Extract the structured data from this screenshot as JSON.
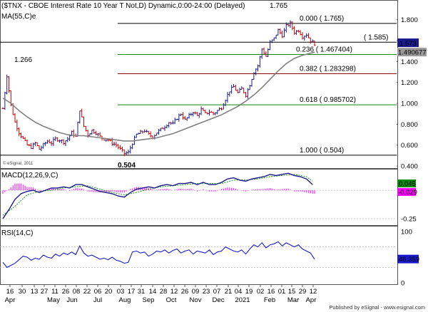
{
  "chart_data": {
    "type": "line",
    "title": "($TNX - CBOE Interest Rate 10 Year T Not,D) Dynamic,0:00-24:00 (Delayed)",
    "copyright": "© eSignal, 2011",
    "footer": "Published by eSignal - www.esignal.com",
    "price_panel": {
      "ylim": [
        0.38,
        1.88
      ],
      "yticks": [
        "1.800",
        "1.600",
        "1.400",
        "1.200",
        "1.000",
        "0.800",
        "0.600",
        "0.400"
      ],
      "ma_label": "MA(55,C)e",
      "last_price_label": "1.573",
      "ma_value_label": "1.490677",
      "annotations": [
        {
          "text": "1.266"
        },
        {
          "text": "0.504"
        },
        {
          "text": "1.765"
        }
      ],
      "fib_levels": [
        {
          "value": 1.765,
          "text": "0.000 ( 1.765)",
          "color": "#000000"
        },
        {
          "value": 1.585,
          "text": "( 1.585)",
          "color": "#000000"
        },
        {
          "value": 1.467404,
          "text": "0.236 ( 1.467404)",
          "color": "#0a8a0a"
        },
        {
          "value": 1.283298,
          "text": "0.382 ( 1.283298)",
          "color": "#8b0000"
        },
        {
          "value": 0.985702,
          "text": "0.618 ( 0.985702)",
          "color": "#0a8a0a"
        },
        {
          "value": 0.504,
          "text": "1.000 ( 0.504)",
          "color": "#000000"
        }
      ],
      "close_series": [
        [
          0,
          0.95
        ],
        [
          2,
          1.266
        ],
        [
          4,
          0.98
        ],
        [
          6,
          0.82
        ],
        [
          8,
          0.72
        ],
        [
          10,
          0.66
        ],
        [
          12,
          0.6
        ],
        [
          14,
          0.58
        ],
        [
          16,
          0.62
        ],
        [
          18,
          0.56
        ],
        [
          20,
          0.6
        ],
        [
          22,
          0.64
        ],
        [
          24,
          0.62
        ],
        [
          26,
          0.66
        ],
        [
          28,
          0.65
        ],
        [
          30,
          0.63
        ],
        [
          32,
          0.66
        ],
        [
          34,
          0.72
        ],
        [
          36,
          0.68
        ],
        [
          38,
          0.94
        ],
        [
          40,
          0.78
        ],
        [
          42,
          0.7
        ],
        [
          44,
          0.74
        ],
        [
          46,
          0.72
        ],
        [
          48,
          0.68
        ],
        [
          50,
          0.66
        ],
        [
          52,
          0.65
        ],
        [
          54,
          0.62
        ],
        [
          56,
          0.6
        ],
        [
          58,
          0.56
        ],
        [
          60,
          0.52
        ],
        [
          62,
          0.53
        ],
        [
          64,
          0.62
        ],
        [
          66,
          0.7
        ],
        [
          68,
          0.72
        ],
        [
          70,
          0.74
        ],
        [
          72,
          0.7
        ],
        [
          74,
          0.68
        ],
        [
          76,
          0.72
        ],
        [
          78,
          0.75
        ],
        [
          80,
          0.78
        ],
        [
          82,
          0.82
        ],
        [
          84,
          0.8
        ],
        [
          86,
          0.86
        ],
        [
          88,
          0.9
        ],
        [
          90,
          0.84
        ],
        [
          92,
          0.88
        ],
        [
          94,
          0.92
        ],
        [
          96,
          0.88
        ],
        [
          98,
          0.94
        ],
        [
          100,
          0.9
        ],
        [
          102,
          0.92
        ],
        [
          104,
          0.9
        ],
        [
          106,
          0.93
        ],
        [
          108,
          0.96
        ],
        [
          110,
          1.04
        ],
        [
          112,
          1.12
        ],
        [
          114,
          1.16
        ],
        [
          116,
          1.1
        ],
        [
          118,
          1.14
        ],
        [
          120,
          1.08
        ],
        [
          122,
          1.18
        ],
        [
          124,
          1.3
        ],
        [
          126,
          1.36
        ],
        [
          128,
          1.52
        ],
        [
          130,
          1.45
        ],
        [
          132,
          1.58
        ],
        [
          134,
          1.62
        ],
        [
          136,
          1.7
        ],
        [
          138,
          1.65
        ],
        [
          140,
          1.74
        ],
        [
          142,
          1.765
        ],
        [
          144,
          1.68
        ],
        [
          146,
          1.7
        ],
        [
          148,
          1.64
        ],
        [
          150,
          1.66
        ],
        [
          152,
          1.6
        ],
        [
          154,
          1.57
        ]
      ],
      "ma_series": [
        [
          0,
          1.05
        ],
        [
          4,
          1.0
        ],
        [
          8,
          0.93
        ],
        [
          12,
          0.87
        ],
        [
          16,
          0.82
        ],
        [
          20,
          0.78
        ],
        [
          24,
          0.75
        ],
        [
          28,
          0.72
        ],
        [
          32,
          0.7
        ],
        [
          36,
          0.69
        ],
        [
          40,
          0.69
        ],
        [
          44,
          0.68
        ],
        [
          48,
          0.67
        ],
        [
          52,
          0.66
        ],
        [
          56,
          0.65
        ],
        [
          60,
          0.64
        ],
        [
          64,
          0.64
        ],
        [
          68,
          0.65
        ],
        [
          72,
          0.66
        ],
        [
          76,
          0.67
        ],
        [
          80,
          0.69
        ],
        [
          84,
          0.71
        ],
        [
          88,
          0.74
        ],
        [
          92,
          0.77
        ],
        [
          96,
          0.8
        ],
        [
          100,
          0.83
        ],
        [
          104,
          0.86
        ],
        [
          108,
          0.89
        ],
        [
          112,
          0.93
        ],
        [
          116,
          0.97
        ],
        [
          120,
          1.02
        ],
        [
          124,
          1.08
        ],
        [
          128,
          1.15
        ],
        [
          132,
          1.23
        ],
        [
          136,
          1.31
        ],
        [
          140,
          1.38
        ],
        [
          144,
          1.43
        ],
        [
          148,
          1.46
        ],
        [
          152,
          1.48
        ],
        [
          154,
          1.49
        ]
      ]
    },
    "macd_panel": {
      "label": "MACD(12,26,9,C)",
      "ylim": [
        -0.3,
        0.17
      ],
      "yticks": [
        "0.00",
        "-0.25"
      ],
      "value_labels": [
        {
          "text": "0.045",
          "color": "#0a8a0a"
        },
        {
          "text": "-0.029",
          "color": "#ff00ff"
        }
      ],
      "macd_series": [
        [
          0,
          -0.25
        ],
        [
          3,
          -0.17
        ],
        [
          6,
          -0.08
        ],
        [
          9,
          -0.03
        ],
        [
          12,
          -0.01
        ],
        [
          15,
          0.0
        ],
        [
          18,
          -0.02
        ],
        [
          21,
          0.0
        ],
        [
          24,
          0.02
        ],
        [
          27,
          0.02
        ],
        [
          30,
          0.03
        ],
        [
          33,
          0.02
        ],
        [
          36,
          0.05
        ],
        [
          39,
          0.05
        ],
        [
          42,
          0.03
        ],
        [
          45,
          0.01
        ],
        [
          48,
          -0.01
        ],
        [
          51,
          -0.02
        ],
        [
          54,
          -0.03
        ],
        [
          57,
          -0.05
        ],
        [
          60,
          -0.06
        ],
        [
          63,
          -0.02
        ],
        [
          66,
          0.01
        ],
        [
          69,
          0.02
        ],
        [
          72,
          0.03
        ],
        [
          75,
          0.02
        ],
        [
          78,
          0.04
        ],
        [
          81,
          0.05
        ],
        [
          84,
          0.04
        ],
        [
          87,
          0.06
        ],
        [
          90,
          0.06
        ],
        [
          93,
          0.07
        ],
        [
          96,
          0.05
        ],
        [
          99,
          0.07
        ],
        [
          102,
          0.05
        ],
        [
          105,
          0.05
        ],
        [
          108,
          0.07
        ],
        [
          111,
          0.1
        ],
        [
          114,
          0.11
        ],
        [
          117,
          0.09
        ],
        [
          120,
          0.08
        ],
        [
          123,
          0.1
        ],
        [
          126,
          0.11
        ],
        [
          129,
          0.12
        ],
        [
          132,
          0.14
        ],
        [
          135,
          0.13
        ],
        [
          138,
          0.14
        ],
        [
          141,
          0.15
        ],
        [
          144,
          0.13
        ],
        [
          147,
          0.12
        ],
        [
          150,
          0.1
        ],
        [
          153,
          0.05
        ]
      ],
      "signal_series": [
        [
          0,
          -0.22
        ],
        [
          6,
          -0.14
        ],
        [
          12,
          -0.04
        ],
        [
          18,
          -0.01
        ],
        [
          24,
          0.0
        ],
        [
          30,
          0.02
        ],
        [
          36,
          0.03
        ],
        [
          42,
          0.04
        ],
        [
          48,
          0.01
        ],
        [
          54,
          -0.02
        ],
        [
          60,
          -0.04
        ],
        [
          66,
          -0.02
        ],
        [
          72,
          0.01
        ],
        [
          78,
          0.03
        ],
        [
          84,
          0.04
        ],
        [
          90,
          0.05
        ],
        [
          96,
          0.06
        ],
        [
          102,
          0.06
        ],
        [
          108,
          0.06
        ],
        [
          114,
          0.09
        ],
        [
          120,
          0.09
        ],
        [
          126,
          0.1
        ],
        [
          132,
          0.12
        ],
        [
          138,
          0.13
        ],
        [
          144,
          0.14
        ],
        [
          150,
          0.12
        ],
        [
          153,
          0.08
        ]
      ]
    },
    "rsi_panel": {
      "label": "RSI(14,C)",
      "ylim": [
        0,
        100
      ],
      "yticks": [
        "100",
        "0"
      ],
      "value_label": "46.359",
      "rsi_series": [
        [
          0,
          40
        ],
        [
          2,
          30
        ],
        [
          4,
          34
        ],
        [
          6,
          38
        ],
        [
          8,
          45
        ],
        [
          10,
          52
        ],
        [
          12,
          50
        ],
        [
          14,
          44
        ],
        [
          16,
          48
        ],
        [
          18,
          46
        ],
        [
          20,
          54
        ],
        [
          22,
          50
        ],
        [
          24,
          48
        ],
        [
          26,
          56
        ],
        [
          28,
          52
        ],
        [
          30,
          58
        ],
        [
          32,
          55
        ],
        [
          34,
          60
        ],
        [
          36,
          55
        ],
        [
          38,
          72
        ],
        [
          40,
          58
        ],
        [
          42,
          52
        ],
        [
          44,
          54
        ],
        [
          46,
          50
        ],
        [
          48,
          46
        ],
        [
          50,
          48
        ],
        [
          52,
          45
        ],
        [
          54,
          50
        ],
        [
          56,
          44
        ],
        [
          58,
          42
        ],
        [
          60,
          38
        ],
        [
          62,
          40
        ],
        [
          64,
          60
        ],
        [
          66,
          62
        ],
        [
          68,
          58
        ],
        [
          70,
          60
        ],
        [
          72,
          52
        ],
        [
          74,
          56
        ],
        [
          76,
          62
        ],
        [
          78,
          60
        ],
        [
          80,
          64
        ],
        [
          82,
          58
        ],
        [
          84,
          63
        ],
        [
          86,
          66
        ],
        [
          88,
          58
        ],
        [
          90,
          62
        ],
        [
          92,
          64
        ],
        [
          94,
          56
        ],
        [
          96,
          62
        ],
        [
          98,
          60
        ],
        [
          100,
          58
        ],
        [
          102,
          64
        ],
        [
          104,
          55
        ],
        [
          106,
          60
        ],
        [
          108,
          62
        ],
        [
          110,
          70
        ],
        [
          112,
          66
        ],
        [
          114,
          62
        ],
        [
          116,
          60
        ],
        [
          118,
          64
        ],
        [
          120,
          56
        ],
        [
          122,
          66
        ],
        [
          124,
          74
        ],
        [
          126,
          70
        ],
        [
          128,
          78
        ],
        [
          130,
          68
        ],
        [
          132,
          74
        ],
        [
          134,
          76
        ],
        [
          136,
          80
        ],
        [
          138,
          72
        ],
        [
          140,
          78
        ],
        [
          142,
          74
        ],
        [
          144,
          70
        ],
        [
          146,
          74
        ],
        [
          148,
          66
        ],
        [
          150,
          62
        ],
        [
          152,
          58
        ],
        [
          154,
          46
        ]
      ]
    },
    "x_axis": {
      "top_ticks": [
        "16",
        "30",
        "13",
        "27",
        "11",
        "26",
        "08",
        "22",
        "06",
        "20",
        "03",
        "17",
        "31",
        "14",
        "28",
        "12",
        "26",
        "09",
        "23",
        "07",
        "21",
        "04",
        "19",
        "02",
        "16",
        "01",
        "15",
        "29",
        "12"
      ],
      "bottom_ticks": [
        "Apr",
        "May",
        "Jun",
        "Jul",
        "Aug",
        "Sep",
        "Oct",
        "Nov",
        "Dec",
        "2021",
        "Feb",
        "Mar",
        "Apr"
      ]
    }
  }
}
